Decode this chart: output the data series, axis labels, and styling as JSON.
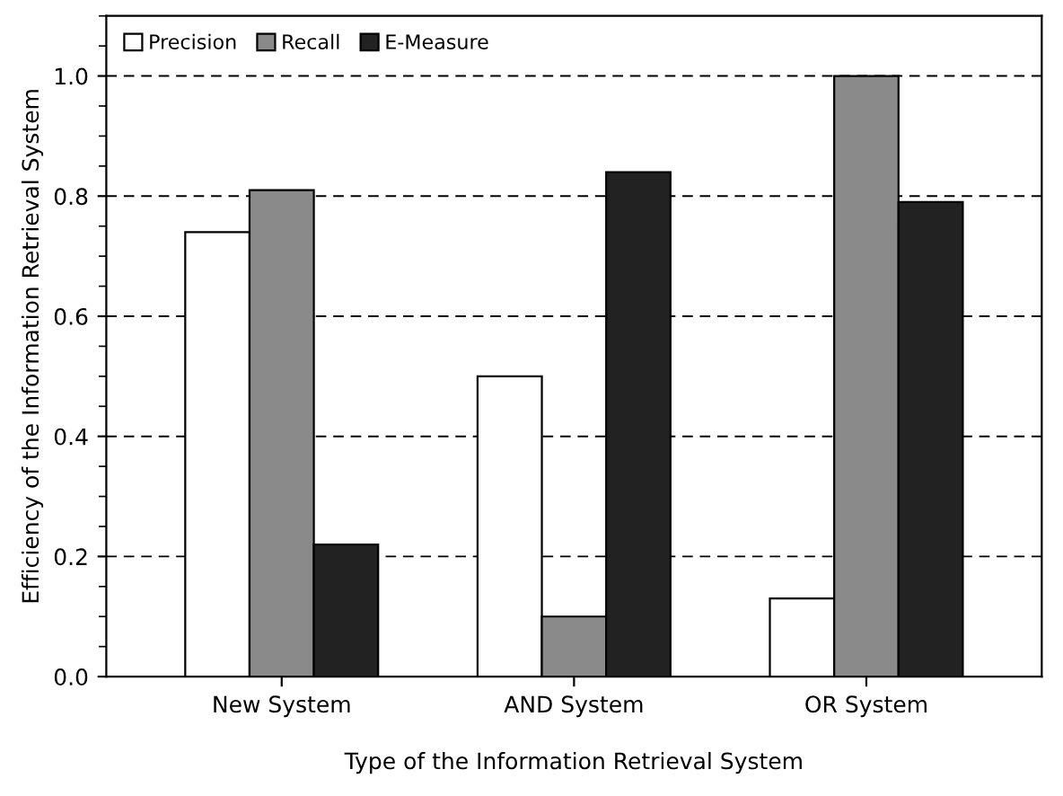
{
  "chart_data": {
    "type": "bar",
    "xlabel": "Type of the Information Retrieval System",
    "ylabel": "Efficiency of the Information Retrieval System",
    "categories": [
      "New System",
      "AND System",
      "OR System"
    ],
    "series": [
      {
        "name": "Precision",
        "color": "#ffffff",
        "values": [
          0.74,
          0.5,
          0.13
        ]
      },
      {
        "name": "Recall",
        "color": "#8a8a8a",
        "values": [
          0.81,
          0.1,
          1.0
        ]
      },
      {
        "name": "E-Measure",
        "color": "#222222",
        "values": [
          0.22,
          0.84,
          0.79
        ]
      }
    ],
    "ylim": [
      0,
      1.1
    ],
    "yticks": [
      {
        "value": 0,
        "label": "0.0"
      },
      0.2,
      0.4,
      0.6,
      0.8,
      {
        "value": 1.0,
        "label": "1.0"
      }
    ],
    "grid": "y",
    "legend": "top left"
  }
}
